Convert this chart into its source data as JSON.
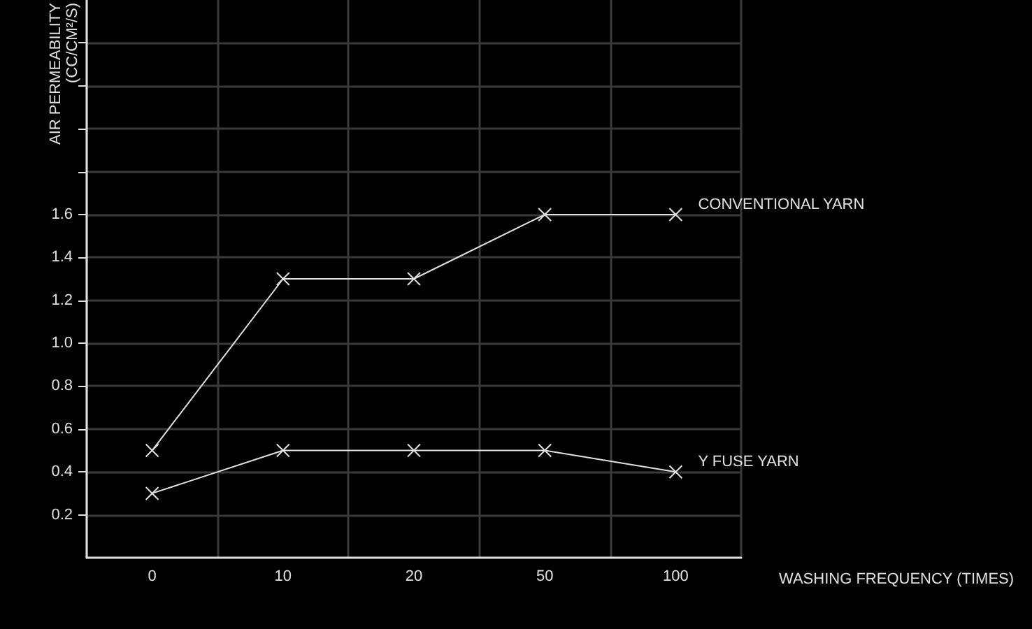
{
  "chart_data": {
    "type": "line",
    "xlabel": "WASHING FREQUENCY (TIMES)",
    "ylabel": "AIR PERMEABILITY\n(CC/CM²/S)",
    "categories": [
      "0",
      "10",
      "20",
      "50",
      "100"
    ],
    "series": [
      {
        "name": "CONVENTIONAL YARN",
        "color": "#e0e0e0",
        "values": [
          0.5,
          1.3,
          1.3,
          1.6,
          1.6
        ]
      },
      {
        "name": "Y FUSE YARN",
        "color": "#e0e0e0",
        "values": [
          0.3,
          0.5,
          0.5,
          0.5,
          0.4
        ]
      }
    ],
    "ylim": [
      0,
      2.6
    ],
    "yticks": [
      0.2,
      0.4,
      0.6,
      0.8,
      {
        "value": 1.0,
        "label": "1.0"
      },
      1.2,
      1.4,
      1.6,
      {
        "value": 1.8,
        "label": null
      },
      {
        "value": 2.0,
        "label": null
      },
      {
        "value": 2.2,
        "label": null
      },
      {
        "value": 2.4,
        "label": null
      }
    ],
    "grid": true,
    "legend": false,
    "marker": "cross",
    "line_style": "solid"
  }
}
